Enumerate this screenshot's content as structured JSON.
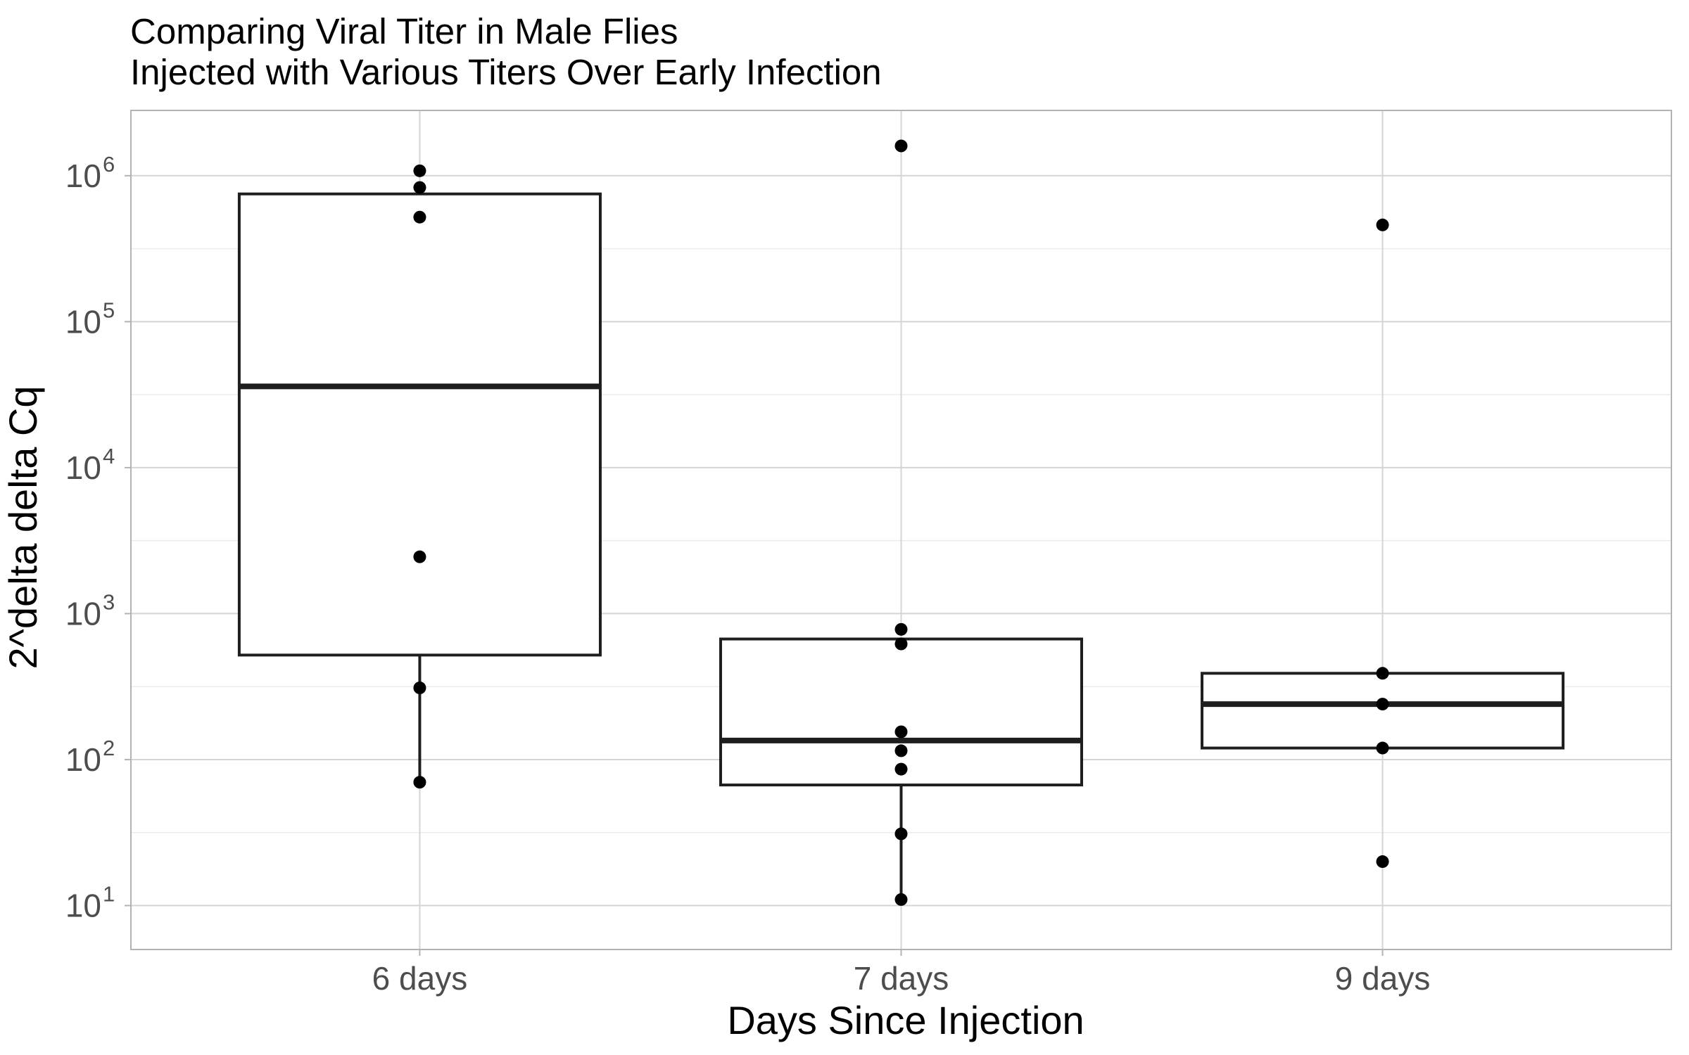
{
  "chart_data": {
    "type": "box",
    "title": "Comparing Viral Titer in Male Flies",
    "subtitle": "Injected with Various Titers Over Early Infection",
    "xlabel": "Days Since Injection",
    "ylabel": "2^delta delta Cq",
    "yscale": "log10",
    "ylim": [
      5,
      2800000
    ],
    "yticks": [
      {
        "value": 10,
        "base": "10",
        "exp": "1"
      },
      {
        "value": 100,
        "base": "10",
        "exp": "2"
      },
      {
        "value": 1000,
        "base": "10",
        "exp": "3"
      },
      {
        "value": 10000,
        "base": "10",
        "exp": "4"
      },
      {
        "value": 100000,
        "base": "10",
        "exp": "5"
      },
      {
        "value": 1000000,
        "base": "10",
        "exp": "6"
      }
    ],
    "grid": true,
    "categories": [
      "6 days",
      "7 days",
      "9 days"
    ],
    "boxes": [
      {
        "category": "6 days",
        "lower_whisker": 70,
        "q1": 520,
        "median": 36000,
        "q3": 750000,
        "upper_whisker": 750000
      },
      {
        "category": "7 days",
        "lower_whisker": 11,
        "q1": 67,
        "median": 135,
        "q3": 670,
        "upper_whisker": 670
      },
      {
        "category": "9 days",
        "lower_whisker": 120,
        "q1": 120,
        "median": 240,
        "q3": 390,
        "upper_whisker": 390
      }
    ],
    "points": [
      {
        "category": "6 days",
        "values": [
          1080000,
          830000,
          520000,
          2450,
          310,
          70
        ]
      },
      {
        "category": "7 days",
        "values": [
          1600000,
          780,
          620,
          155,
          115,
          86,
          31,
          11
        ]
      },
      {
        "category": "9 days",
        "values": [
          460000,
          390,
          240,
          120,
          20
        ]
      }
    ]
  }
}
